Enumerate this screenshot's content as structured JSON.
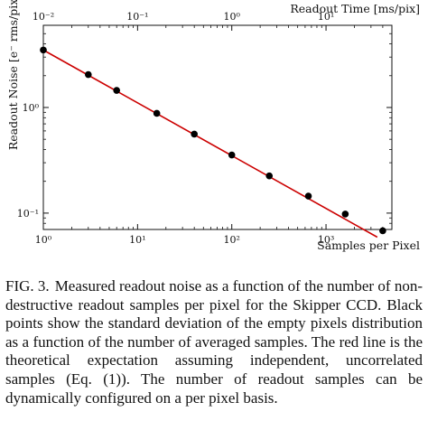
{
  "chart_data": {
    "type": "scatter",
    "xlabel": "Samples per Pixel",
    "ylabel": "Readout Noise [e⁻ rms/pix]",
    "top_xlabel": "Readout Time [ms/pix]",
    "x_scale": "log",
    "y_scale": "log",
    "xlim": [
      1,
      5000
    ],
    "ylim": [
      0.07,
      6
    ],
    "top_xlim": [
      0.01,
      50
    ],
    "grid": false,
    "x_ticks": [
      {
        "value": 1,
        "label": "10⁰"
      },
      {
        "value": 10,
        "label": "10¹"
      },
      {
        "value": 100,
        "label": "10²"
      },
      {
        "value": 1000,
        "label": "10³"
      }
    ],
    "top_x_ticks": [
      {
        "value": 0.01,
        "label": "10⁻²"
      },
      {
        "value": 0.1,
        "label": "10⁻¹"
      },
      {
        "value": 1,
        "label": "10⁰"
      },
      {
        "value": 10,
        "label": "10¹"
      }
    ],
    "y_ticks": [
      {
        "value": 0.1,
        "label": "10⁻¹"
      },
      {
        "value": 1,
        "label": "10⁰"
      }
    ],
    "series": [
      {
        "type": "scatter",
        "color": "#000000",
        "x": [
          1,
          3,
          6,
          16,
          40,
          100,
          250,
          650,
          1600,
          4000
        ],
        "y": [
          3.5,
          2.05,
          1.45,
          0.88,
          0.56,
          0.355,
          0.225,
          0.145,
          0.098,
          0.068
        ]
      },
      {
        "type": "line",
        "color": "#cc0000",
        "x": [
          1,
          3500
        ],
        "y": [
          3.5,
          0.0592
        ]
      }
    ]
  },
  "caption": {
    "label": "FIG. 3.",
    "text": "Measured readout noise as a function of the number of non-destructive readout samples per pixel for the Skipper CCD. Black points show the standard deviation of the empty pixels distribution as a function of the number of averaged samples. The red line is the theoretical expectation assuming independent, uncorrelated samples (Eq. (1)). The number of readout samples can be dynamically configured on a per pixel basis."
  }
}
